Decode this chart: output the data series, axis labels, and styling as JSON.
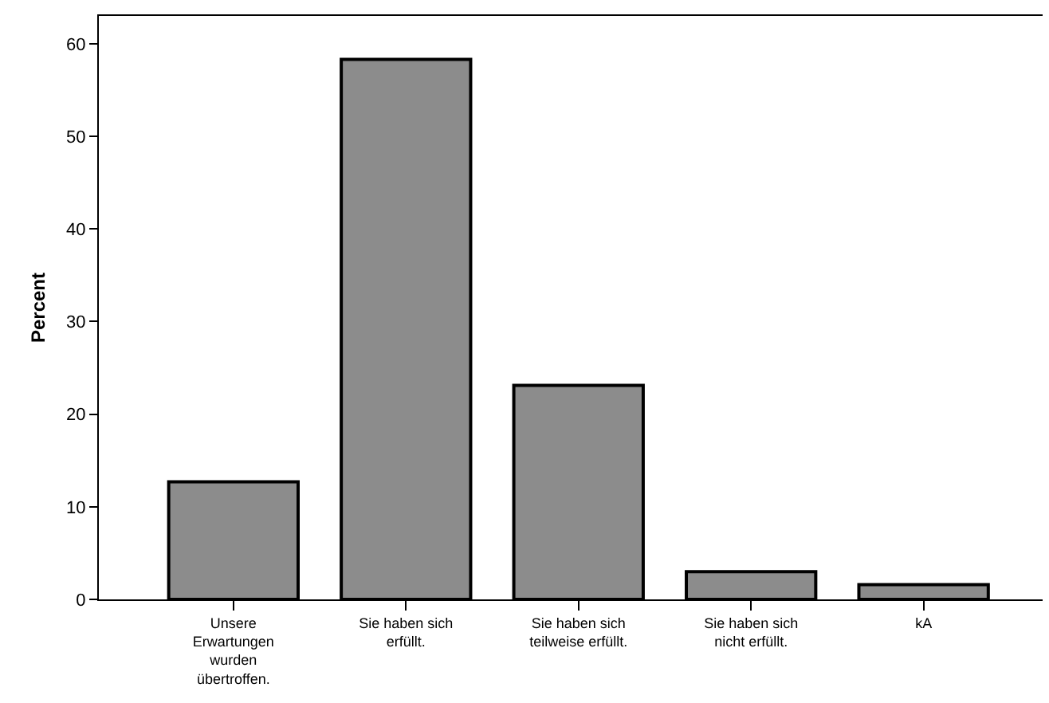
{
  "chart_data": {
    "type": "bar",
    "ylabel": "Percent",
    "categories": [
      "Unsere\nErwartungen\nwurden\nübertroffen.",
      "Sie haben sich\nerfüllt.",
      "Sie haben sich\nteilweise erfüllt.",
      "Sie haben sich\nnicht erfüllt.",
      "kA"
    ],
    "values": [
      12.7,
      58.3,
      23.1,
      3.0,
      1.6
    ],
    "color": "#8c8c8c",
    "ylim": [
      0,
      63
    ],
    "yticks": [
      0,
      10,
      20,
      30,
      40,
      50,
      60
    ],
    "grid": false
  }
}
